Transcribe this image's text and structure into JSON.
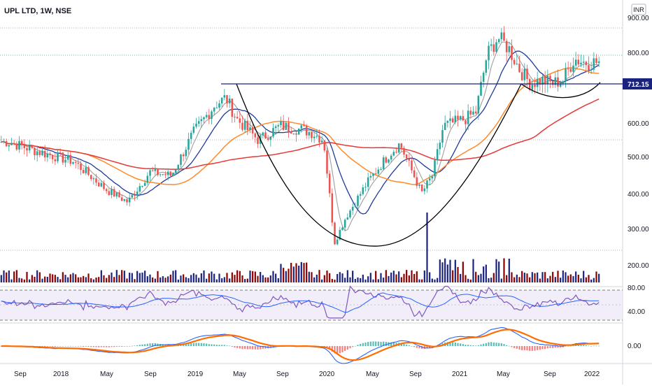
{
  "header": {
    "title": "UPL LTD, 1W, NSE",
    "currency_badge": "INR"
  },
  "price_axis": {
    "labels": [
      "900.00",
      "800.00",
      "700.00",
      "600.00",
      "500.00",
      "400.00",
      "300.00",
      "200.00"
    ],
    "current_price": "712.15"
  },
  "rsi_axis": {
    "labels": [
      "80.00",
      "40.00"
    ]
  },
  "macd_axis": {
    "labels": [
      "0.00"
    ]
  },
  "time_axis": {
    "labels": [
      "Sep",
      "2018",
      "May",
      "Sep",
      "2019",
      "May",
      "Sep",
      "2020",
      "May",
      "Sep",
      "2021",
      "May",
      "Sep",
      "2022"
    ]
  },
  "colors": {
    "up_candle": "#26a69a",
    "down_candle": "#ef5350",
    "ema_fast": "#9e9e9e",
    "ema_mid": "#1e3a9a",
    "ema_slow": "#ff8a2b",
    "ema_long": "#e53935",
    "resistance_line": "#1a237e",
    "cup_curve": "#000000",
    "rsi_line": "#7e57c2",
    "rsi_signal": "#2962ff",
    "macd_line": "#2962ff",
    "signal_line": "#ff6d00",
    "volume_up": "#1a237e",
    "volume_down": "#8b0000"
  },
  "chart_data": [
    {
      "type": "candlestick",
      "title": "UPL LTD, 1W, NSE",
      "ylim": [
        230,
        900
      ],
      "x_ticks": [
        "Sep",
        "2018",
        "May",
        "Sep",
        "2019",
        "May",
        "Sep",
        "2020",
        "May",
        "Sep",
        "2021",
        "May",
        "Sep",
        "2022"
      ],
      "close_path": [
        [
          "Sep 2017",
          555
        ],
        [
          "Dec 2017",
          525
        ],
        [
          "Mar 2018",
          500
        ],
        [
          "Jun 2018",
          420
        ],
        [
          "Aug 2018",
          385
        ],
        [
          "Oct 2018",
          470
        ],
        [
          "Dec 2018",
          460
        ],
        [
          "Feb 2019",
          580
        ],
        [
          "Apr 2019",
          660
        ],
        [
          "May 2019",
          680
        ],
        [
          "Jun 2019",
          620
        ],
        [
          "Aug 2019",
          560
        ],
        [
          "Oct 2019",
          600
        ],
        [
          "Dec 2019",
          590
        ],
        [
          "Jan 2020",
          580
        ],
        [
          "Feb 2020",
          560
        ],
        [
          "Mar 2020",
          270
        ],
        [
          "Apr 2020",
          340
        ],
        [
          "Jun 2020",
          440
        ],
        [
          "Aug 2020",
          520
        ],
        [
          "Sep 2020",
          550
        ],
        [
          "Oct 2020",
          480
        ],
        [
          "Nov 2020",
          410
        ],
        [
          "Dec 2020",
          460
        ],
        [
          "Jan 2021",
          600
        ],
        [
          "Mar 2021",
          620
        ],
        [
          "Apr 2021",
          640
        ],
        [
          "May 2021",
          800
        ],
        [
          "Jun 2021",
          850
        ],
        [
          "Jul 2021",
          820
        ],
        [
          "Aug 2021",
          760
        ],
        [
          "Sep 2021",
          720
        ],
        [
          "Oct 2021",
          730
        ],
        [
          "Nov 2021",
          720
        ],
        [
          "Dec 2021",
          730
        ],
        [
          "Jan 2022",
          790
        ],
        [
          "Feb 2022",
          780
        ]
      ],
      "moving_averages": [
        {
          "name": "fast",
          "color": "#9e9e9e"
        },
        {
          "name": "mid",
          "color": "#1e3a9a"
        },
        {
          "name": "slow",
          "color": "#ff8a2b"
        },
        {
          "name": "long",
          "color": "#e53935"
        }
      ],
      "annotations": {
        "resistance_level": 712.15,
        "cup_shape": "large cup from May 2019 to May 2021, handle cup from Jul 2021 to Feb 2022"
      }
    },
    {
      "type": "bar",
      "panel": "volume",
      "colors": [
        "#1a237e",
        "#8b0000"
      ]
    },
    {
      "type": "line",
      "panel": "rsi",
      "ylim": [
        20,
        90
      ],
      "bands": [
        30,
        70
      ],
      "y_ticks": [
        "80.00",
        "40.00"
      ]
    },
    {
      "type": "line",
      "panel": "macd",
      "y_ticks": [
        "0.00"
      ]
    }
  ]
}
